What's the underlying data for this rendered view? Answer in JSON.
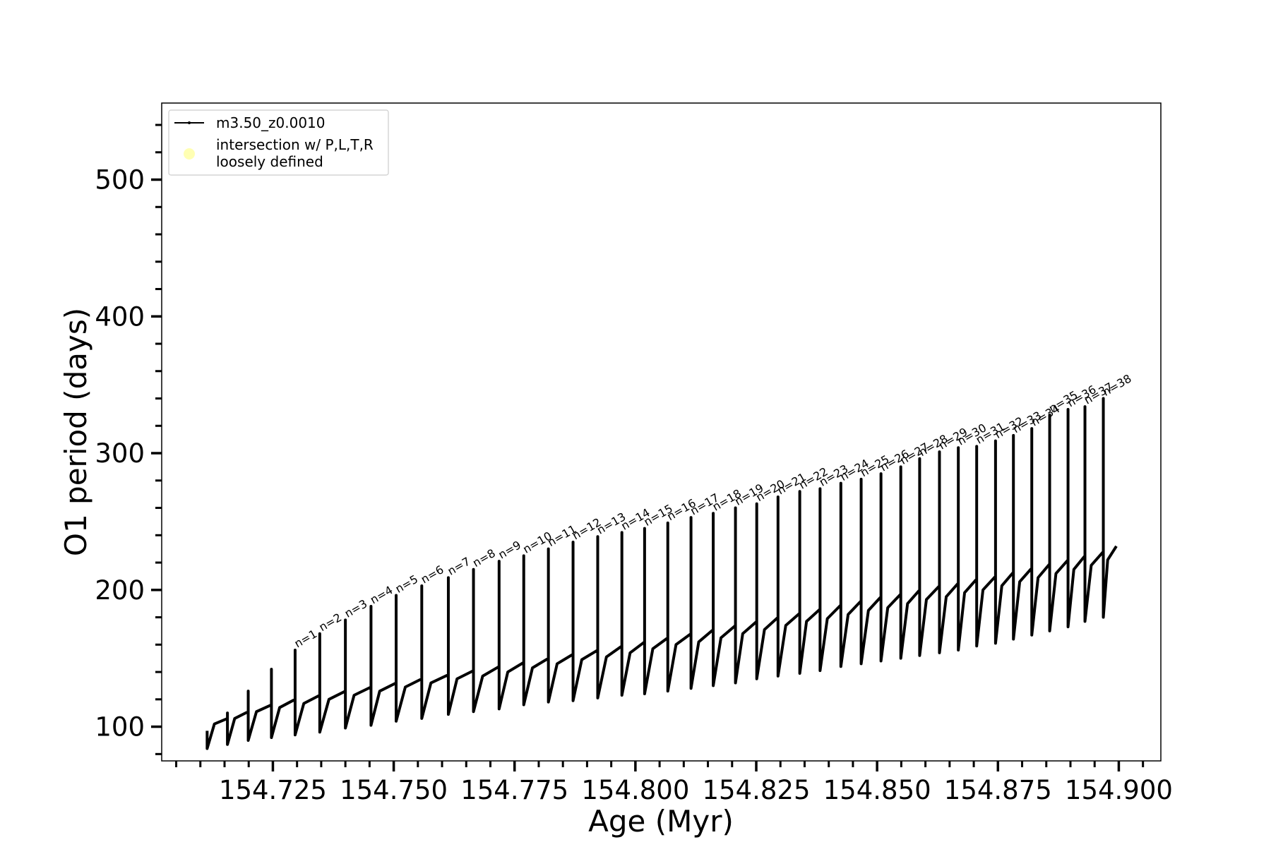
{
  "chart_data": {
    "type": "line",
    "xlabel": "Age (Myr)",
    "ylabel": "O1 period (days)",
    "xlim": [
      154.702,
      154.9087
    ],
    "ylim": [
      75,
      556
    ],
    "xticks": [
      154.725,
      {
        "value": 154.75,
        "label": "154.750"
      },
      154.775,
      {
        "value": 154.8,
        "label": "154.800"
      },
      154.825,
      {
        "value": 154.85,
        "label": "154.850"
      },
      154.875,
      {
        "value": 154.9,
        "label": "154.900"
      }
    ],
    "xticks_minor": [
      154.705,
      154.71,
      154.715,
      154.72,
      154.73,
      154.735,
      154.74,
      154.745,
      154.755,
      154.76,
      154.765,
      154.77,
      154.78,
      154.785,
      154.79,
      154.795,
      154.805,
      154.81,
      154.815,
      154.82,
      154.83,
      154.835,
      154.84,
      154.845,
      154.855,
      154.86,
      154.865,
      154.87,
      154.88,
      154.885,
      154.89,
      154.895,
      154.905
    ],
    "yticks": [
      100,
      200,
      300,
      400,
      500
    ],
    "yticks_minor": [
      80,
      120,
      140,
      160,
      180,
      220,
      240,
      260,
      280,
      320,
      340,
      360,
      380,
      420,
      440,
      460,
      480,
      520,
      540
    ],
    "legend": "upper left",
    "series": [
      {
        "name": "m3.50_z0.0010",
        "color": "#000000",
        "x": [
          154.7114,
          154.7114,
          154.7129,
          154.7156,
          154.7156,
          154.7156,
          154.7171,
          154.7199,
          154.7199,
          154.7199,
          154.7216,
          154.7247,
          154.7247,
          154.7247,
          154.7264,
          154.7296,
          154.7296,
          154.7296,
          154.7314,
          154.7347,
          154.7347,
          154.7347,
          154.7366,
          154.74,
          154.74,
          154.74,
          154.7418,
          154.7453,
          154.7453,
          154.7453,
          154.7471,
          154.7505,
          154.7505,
          154.7505,
          154.7524,
          154.7558,
          154.7558,
          154.7558,
          154.7577,
          154.7613,
          154.7613,
          154.7613,
          154.7631,
          154.7665,
          154.7665,
          154.7665,
          154.7684,
          154.7718,
          154.7718,
          154.7718,
          154.7736,
          154.7769,
          154.7769,
          154.7769,
          154.7787,
          154.782,
          154.782,
          154.782,
          154.7838,
          154.7871,
          154.7871,
          154.7871,
          154.7889,
          154.7922,
          154.7922,
          154.7922,
          154.794,
          154.7972,
          154.7972,
          154.7972,
          154.7989,
          154.8019,
          154.8019,
          154.8019,
          154.8036,
          154.8067,
          154.8067,
          154.8067,
          154.8084,
          154.8115,
          154.8115,
          154.8115,
          154.8131,
          154.8161,
          154.8161,
          154.8161,
          154.8177,
          154.8207,
          154.8207,
          154.8207,
          154.8222,
          154.8251,
          154.8251,
          154.8251,
          154.8267,
          154.8295,
          154.8295,
          154.8295,
          154.8311,
          154.834,
          154.834,
          154.834,
          154.8354,
          154.8382,
          154.8382,
          154.8382,
          154.8397,
          154.8425,
          154.8425,
          154.8425,
          154.844,
          154.8467,
          154.8467,
          154.8467,
          154.8482,
          154.8508,
          154.8508,
          154.8508,
          154.8522,
          154.8549,
          154.8549,
          154.8549,
          154.8563,
          154.8588,
          154.8588,
          154.8588,
          154.8602,
          154.8629,
          154.8629,
          154.8629,
          154.8643,
          154.8668,
          154.8668,
          154.8668,
          154.8681,
          154.8706,
          154.8706,
          154.8706,
          154.8719,
          154.8745,
          154.8745,
          154.8745,
          154.8758,
          154.8782,
          154.8782,
          154.8782,
          154.8795,
          154.882,
          154.882,
          154.882,
          154.8833,
          154.8857,
          154.8857,
          154.8857,
          154.887,
          154.8895,
          154.8895,
          154.8895,
          154.8907,
          154.893,
          154.893,
          154.893,
          154.8943,
          154.8968,
          154.8968,
          154.8968,
          154.8977,
          154.8995
        ],
        "values": [
          97,
          84,
          102,
          106,
          110,
          87,
          106,
          111,
          126,
          90,
          111,
          116,
          142,
          92,
          114,
          120,
          156,
          94,
          117,
          123,
          168,
          96,
          120,
          126,
          178,
          99,
          123,
          129,
          188,
          101,
          126,
          132,
          196,
          104,
          129,
          135,
          203,
          106,
          132,
          138,
          209,
          109,
          135,
          141,
          215,
          111,
          137,
          144,
          221,
          113,
          140,
          147,
          225,
          116,
          143,
          150,
          230,
          118,
          146,
          153,
          235,
          119,
          149,
          156,
          239,
          121,
          151,
          159,
          242,
          123,
          154,
          162,
          245,
          124,
          157,
          165,
          249,
          126,
          160,
          168,
          253,
          128,
          162,
          171,
          256,
          130,
          165,
          174,
          260,
          132,
          168,
          177,
          263,
          135,
          171,
          180,
          268,
          137,
          174,
          183,
          272,
          139,
          177,
          186,
          274,
          141,
          179,
          189,
          278,
          144,
          182,
          192,
          281,
          146,
          185,
          195,
          285,
          148,
          187,
          197,
          290,
          150,
          190,
          200,
          296,
          152,
          193,
          203,
          301,
          154,
          195,
          205,
          304,
          156,
          198,
          208,
          305,
          159,
          200,
          210,
          309,
          161,
          203,
          213,
          313,
          164,
          206,
          216,
          318,
          167,
          209,
          219,
          328,
          170,
          212,
          222,
          332,
          173,
          215,
          225,
          334,
          177,
          218,
          228,
          340,
          180,
          222,
          232
        ]
      },
      {
        "name": [
          "intersection w/ P,L,T,R",
          "loosely defined"
        ],
        "color": "#ffffb3"
      }
    ],
    "annotations": [
      {
        "text": "n=1",
        "x": 154.7296,
        "y": 156
      },
      {
        "text": "n=2",
        "x": 154.7347,
        "y": 168
      },
      {
        "text": "n=3",
        "x": 154.74,
        "y": 178
      },
      {
        "text": "n=4",
        "x": 154.7453,
        "y": 188
      },
      {
        "text": "n=5",
        "x": 154.7505,
        "y": 196
      },
      {
        "text": "n=6",
        "x": 154.7558,
        "y": 203
      },
      {
        "text": "n=7",
        "x": 154.7613,
        "y": 209
      },
      {
        "text": "n=8",
        "x": 154.7665,
        "y": 215
      },
      {
        "text": "n=9",
        "x": 154.7718,
        "y": 221
      },
      {
        "text": "n=10",
        "x": 154.7769,
        "y": 225
      },
      {
        "text": "n=11",
        "x": 154.782,
        "y": 230
      },
      {
        "text": "n=12",
        "x": 154.7871,
        "y": 235
      },
      {
        "text": "n=13",
        "x": 154.7922,
        "y": 239
      },
      {
        "text": "n=14",
        "x": 154.7972,
        "y": 242
      },
      {
        "text": "n=15",
        "x": 154.8019,
        "y": 245
      },
      {
        "text": "n=16",
        "x": 154.8067,
        "y": 249
      },
      {
        "text": "n=17",
        "x": 154.8115,
        "y": 253
      },
      {
        "text": "n=18",
        "x": 154.8161,
        "y": 256
      },
      {
        "text": "n=19",
        "x": 154.8207,
        "y": 260
      },
      {
        "text": "n=20",
        "x": 154.8251,
        "y": 263
      },
      {
        "text": "n=21",
        "x": 154.8295,
        "y": 268
      },
      {
        "text": "n=22",
        "x": 154.834,
        "y": 272
      },
      {
        "text": "n=23",
        "x": 154.8382,
        "y": 274
      },
      {
        "text": "n=24",
        "x": 154.8425,
        "y": 278
      },
      {
        "text": "n=25",
        "x": 154.8467,
        "y": 281
      },
      {
        "text": "n=26",
        "x": 154.8508,
        "y": 285
      },
      {
        "text": "n=27",
        "x": 154.8549,
        "y": 290
      },
      {
        "text": "n=28",
        "x": 154.8588,
        "y": 296
      },
      {
        "text": "n=29",
        "x": 154.8629,
        "y": 301
      },
      {
        "text": "n=30",
        "x": 154.8668,
        "y": 304
      },
      {
        "text": "n=31",
        "x": 154.8706,
        "y": 305
      },
      {
        "text": "n=32",
        "x": 154.8745,
        "y": 309
      },
      {
        "text": "n=33",
        "x": 154.8782,
        "y": 313
      },
      {
        "text": "n=34",
        "x": 154.882,
        "y": 318
      },
      {
        "text": "n=35",
        "x": 154.8857,
        "y": 328
      },
      {
        "text": "n=36",
        "x": 154.8895,
        "y": 332
      },
      {
        "text": "n=37",
        "x": 154.893,
        "y": 334
      },
      {
        "text": "n=38",
        "x": 154.8968,
        "y": 340
      }
    ]
  }
}
